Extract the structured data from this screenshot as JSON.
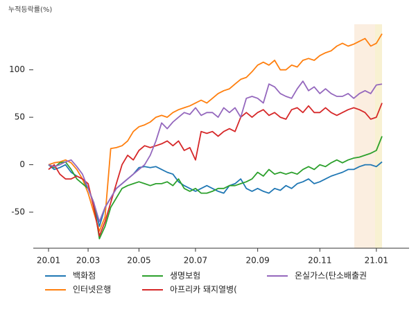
{
  "chart_data": {
    "type": "line",
    "title": "누적등락률(%)",
    "categories": [
      "20.01",
      null,
      null,
      null,
      null,
      null,
      null,
      "20.03",
      null,
      null,
      null,
      null,
      null,
      null,
      null,
      null,
      "20.05",
      null,
      null,
      null,
      null,
      null,
      null,
      null,
      null,
      null,
      "20.07",
      null,
      null,
      null,
      null,
      null,
      null,
      null,
      null,
      null,
      null,
      "20.09",
      null,
      null,
      null,
      null,
      null,
      null,
      null,
      null,
      null,
      null,
      "20.11",
      null,
      null,
      null,
      null,
      null,
      null,
      null,
      null,
      null,
      "21.01",
      null
    ],
    "ylim": [
      -88,
      148
    ],
    "yticks": [
      -50,
      0,
      50,
      100
    ],
    "series": [
      {
        "name": "백화점",
        "color": "#1f77b4",
        "values": [
          0,
          -5,
          -3,
          0,
          -8,
          -12,
          -15,
          -25,
          -40,
          -65,
          -45,
          -35,
          -25,
          -20,
          -15,
          -10,
          -3,
          -2,
          -3,
          -2,
          -5,
          -8,
          -10,
          -18,
          -22,
          -25,
          -28,
          -25,
          -22,
          -25,
          -28,
          -30,
          -22,
          -20,
          -15,
          -25,
          -28,
          -25,
          -28,
          -30,
          -25,
          -27,
          -22,
          -25,
          -20,
          -18,
          -15,
          -20,
          -18,
          -15,
          -12,
          -10,
          -8,
          -5,
          -5,
          -2,
          0,
          0,
          -2,
          3
        ]
      },
      {
        "name": "인터넷은행",
        "color": "#ff7f0e",
        "values": [
          0,
          2,
          3,
          5,
          2,
          -5,
          -15,
          -30,
          -50,
          -70,
          -55,
          17,
          18,
          20,
          25,
          35,
          40,
          42,
          45,
          50,
          52,
          50,
          55,
          58,
          60,
          62,
          65,
          68,
          65,
          70,
          75,
          78,
          80,
          85,
          90,
          92,
          98,
          105,
          108,
          105,
          110,
          100,
          100,
          105,
          103,
          110,
          112,
          110,
          115,
          118,
          120,
          125,
          128,
          125,
          127,
          130,
          133,
          125,
          128,
          138
        ]
      },
      {
        "name": "생명보험",
        "color": "#2ca02c",
        "values": [
          0,
          -3,
          2,
          3,
          -5,
          -15,
          -20,
          -25,
          -40,
          -78,
          -65,
          -45,
          -35,
          -25,
          -22,
          -20,
          -18,
          -20,
          -22,
          -20,
          -20,
          -18,
          -22,
          -15,
          -25,
          -28,
          -25,
          -30,
          -30,
          -28,
          -25,
          -25,
          -22,
          -22,
          -20,
          -18,
          -15,
          -8,
          -12,
          -5,
          -10,
          -8,
          -10,
          -8,
          -10,
          -5,
          -2,
          -5,
          0,
          -2,
          2,
          5,
          2,
          5,
          7,
          8,
          10,
          12,
          15,
          30
        ]
      },
      {
        "name": "아프리카 돼지열병(",
        "color": "#d62728",
        "values": [
          -5,
          0,
          -10,
          -15,
          -15,
          -12,
          -15,
          -20,
          -45,
          -75,
          -60,
          -40,
          -20,
          0,
          10,
          5,
          15,
          20,
          18,
          20,
          22,
          25,
          20,
          25,
          15,
          18,
          5,
          35,
          33,
          35,
          30,
          35,
          38,
          35,
          50,
          55,
          50,
          55,
          58,
          52,
          55,
          50,
          48,
          58,
          60,
          55,
          62,
          55,
          55,
          60,
          55,
          52,
          55,
          58,
          60,
          58,
          55,
          48,
          50,
          65
        ]
      },
      {
        "name": "온실가스(탄소배출권",
        "color": "#9467bd",
        "values": [
          0,
          -2,
          0,
          3,
          5,
          -2,
          -10,
          -25,
          -40,
          -60,
          -45,
          -35,
          -25,
          -20,
          -15,
          -10,
          -5,
          0,
          10,
          25,
          44,
          38,
          45,
          50,
          55,
          53,
          60,
          52,
          55,
          55,
          50,
          60,
          55,
          60,
          50,
          70,
          72,
          70,
          65,
          85,
          82,
          75,
          72,
          70,
          80,
          88,
          78,
          82,
          75,
          80,
          75,
          72,
          72,
          75,
          70,
          75,
          78,
          75,
          84,
          85
        ]
      }
    ]
  }
}
